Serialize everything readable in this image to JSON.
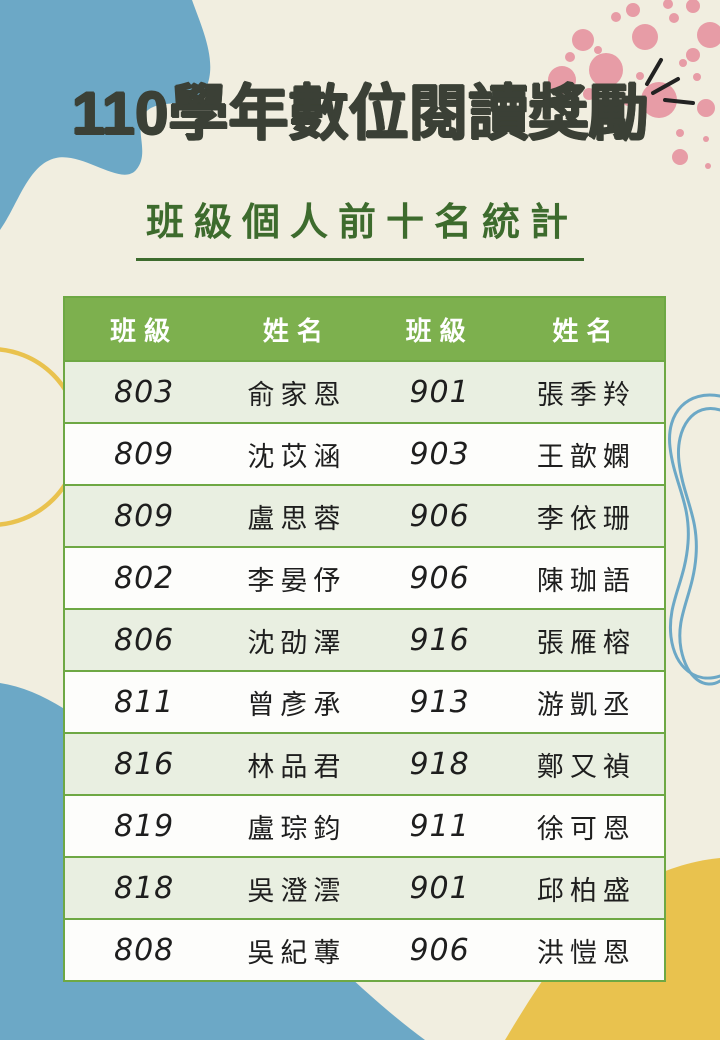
{
  "page": {
    "title": "110學年數位閱讀獎勵",
    "subtitle": "班級個人前十名統計"
  },
  "table": {
    "headers": [
      "班級",
      "姓名",
      "班級",
      "姓名"
    ],
    "rows": [
      [
        "803",
        "俞家恩",
        "901",
        "張季羚"
      ],
      [
        "809",
        "沈苡涵",
        "903",
        "王歆嫻"
      ],
      [
        "809",
        "盧思蓉",
        "906",
        "李依珊"
      ],
      [
        "802",
        "李晏伃",
        "906",
        "陳珈語"
      ],
      [
        "806",
        "沈劭澤",
        "916",
        "張雁榕"
      ],
      [
        "811",
        "曾彥承",
        "913",
        "游凱丞"
      ],
      [
        "816",
        "林品君",
        "918",
        "鄭又禎"
      ],
      [
        "819",
        "盧琮鈞",
        "911",
        "徐可恩"
      ],
      [
        "818",
        "吳澄澐",
        "901",
        "邱柏盛"
      ],
      [
        "808",
        "吳紀蓴",
        "906",
        "洪愷恩"
      ]
    ]
  },
  "colors": {
    "cream": "#F1EEE0",
    "blue": "#6CA8C6",
    "pink": "#E79CA6",
    "yellow": "#E9C24E",
    "green-header": "#7DB04E",
    "green-border": "#6EA844",
    "green-dark": "#3D6B2D",
    "title": "#3B4036",
    "row-alt": "#E9EFE1",
    "white-row": "#FDFDFB",
    "ink": "#1E1E1E",
    "emphasis": "#222222"
  },
  "decorations": {
    "top_left_blob": "blue-wavy-blob",
    "bottom_left_blob": "blue-wavy-blob",
    "bottom_right_blob": "yellow-blob",
    "left_ring": "yellow-circle-outline",
    "right_squiggle": "blue-line-doodle",
    "top_right_dots": "pink-dot-cluster",
    "emphasis_marks": "black-accent-strokes"
  }
}
